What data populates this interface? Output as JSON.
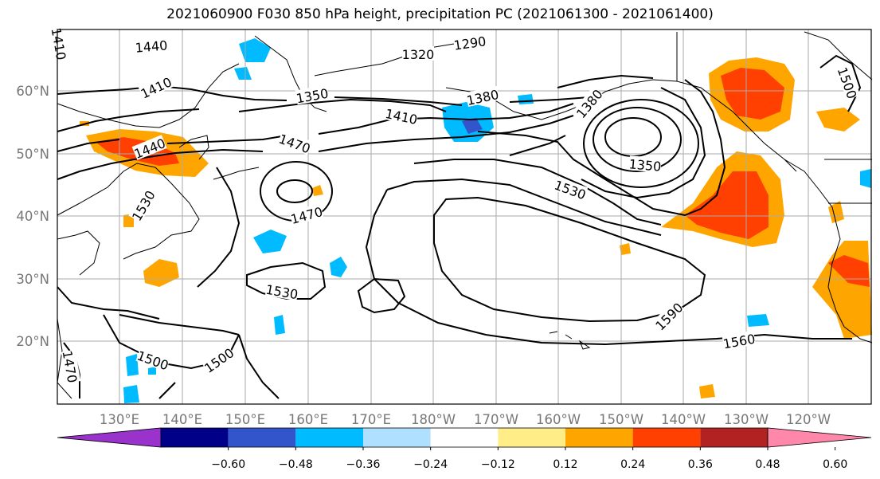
{
  "title": "2021060900 F030 850 hPa height, precipitation PC (2021061300 - 2021061400)",
  "map": {
    "lon_labels": [
      "130°E",
      "140°E",
      "150°E",
      "160°E",
      "170°E",
      "180°W",
      "170°W",
      "160°W",
      "150°W",
      "140°W",
      "130°W",
      "120°W"
    ],
    "lat_labels": [
      "60°N",
      "50°N",
      "40°N",
      "30°N",
      "20°N"
    ],
    "contour_labels": [
      {
        "id": "c1440a",
        "text": "1440"
      },
      {
        "id": "c1410a",
        "text": "1410"
      },
      {
        "id": "c1410b",
        "text": "1410"
      },
      {
        "id": "c1350a",
        "text": "1350"
      },
      {
        "id": "c1320",
        "text": "1320"
      },
      {
        "id": "c1290",
        "text": "1290"
      },
      {
        "id": "c1380a",
        "text": "1380"
      },
      {
        "id": "c1410c",
        "text": "1410"
      },
      {
        "id": "c1380b",
        "text": "1380"
      },
      {
        "id": "c1500a",
        "text": "1500"
      },
      {
        "id": "c1440b",
        "text": "1440"
      },
      {
        "id": "c1470a",
        "text": "1470"
      },
      {
        "id": "c1350b",
        "text": "1350"
      },
      {
        "id": "c1530a",
        "text": "1530"
      },
      {
        "id": "c1530b",
        "text": "1530"
      },
      {
        "id": "c1470b",
        "text": "1470"
      },
      {
        "id": "c1530c",
        "text": "1530"
      },
      {
        "id": "c1590",
        "text": "1590"
      },
      {
        "id": "c1560",
        "text": "1560"
      },
      {
        "id": "c1500b",
        "text": "1500"
      },
      {
        "id": "c1500c",
        "text": "1500"
      },
      {
        "id": "c1470c",
        "text": "1470"
      }
    ]
  },
  "colorbar": {
    "colors": [
      "#9933cc",
      "#000088",
      "#3355cc",
      "#00bbff",
      "#b0e0ff",
      "#ffffff",
      "#ffee88",
      "#ffa500",
      "#ff4000",
      "#b22222",
      "#ff88aa"
    ],
    "tick_labels": [
      "−0.60",
      "−0.48",
      "−0.36",
      "−0.24",
      "−0.12",
      "0.12",
      "0.24",
      "0.36",
      "0.48",
      "0.60"
    ]
  },
  "colors": {
    "orange": "#ffa500",
    "red": "#ff4000",
    "light_blue": "#00bbff",
    "dark_blue": "#3355cc",
    "yellow": "#ffee88"
  }
}
